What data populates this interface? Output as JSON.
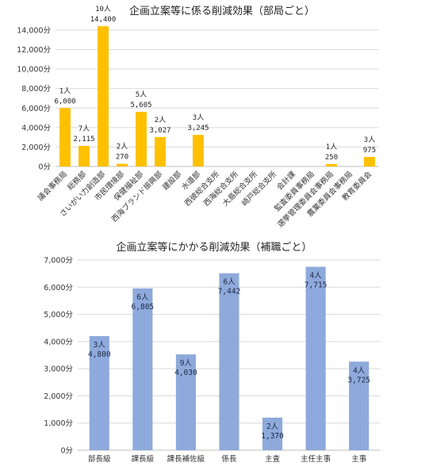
{
  "chart_data": [
    {
      "type": "bar",
      "title": "企画立案等に係る削減効果（部局ごと）",
      "color": "#FFC000",
      "ylim": [
        0,
        14000
      ],
      "yticks": [
        "0分",
        "2,000分",
        "4,000分",
        "6,000分",
        "8,000分",
        "10,000分",
        "12,000分",
        "14,000分"
      ],
      "categories": [
        "議会事務局",
        "総務部",
        "さいがい力創造部",
        "市民環境部",
        "保健福祉部",
        "西海ブランド振興部",
        "建設部",
        "水道部",
        "西彼総合支所",
        "西海総合支所",
        "大島総合支所",
        "崎戸総合支所",
        "会計課",
        "監査委員事務局",
        "選挙管理委員会事務局",
        "農業委員会事務局",
        "教育委員会"
      ],
      "values": [
        6000,
        2115,
        14400,
        270,
        5605,
        3027,
        0,
        3245,
        0,
        0,
        0,
        0,
        0,
        0,
        250,
        0,
        975
      ],
      "people": [
        "1人",
        "7人",
        "10人",
        "2人",
        "5人",
        "2人",
        "",
        "3人",
        "",
        "",
        "",
        "",
        "",
        "",
        "1人",
        "",
        "3人"
      ],
      "value_labels": [
        "6,000",
        "2,115",
        "14,400",
        "270",
        "5,605",
        "3,027",
        "",
        "3,245",
        "",
        "",
        "",
        "",
        "",
        "",
        "250",
        "",
        "975"
      ],
      "grid": true,
      "legend": "none"
    },
    {
      "type": "bar",
      "title": "企画立案等にかかる削減効果（補職ごと）",
      "color": "#8EA9DB",
      "ylim": [
        0,
        8000
      ],
      "yticks": [
        "0分",
        "1,000分",
        "2,000分",
        "3,000分",
        "4,000分",
        "5,000分",
        "6,000分",
        "7,000分"
      ],
      "categories": [
        "部長級",
        "課長級",
        "課長補佐級",
        "係長",
        "主査",
        "主任主事",
        "主事"
      ],
      "values": [
        4800,
        6805,
        4030,
        7442,
        1370,
        7715,
        3725
      ],
      "people": [
        "3人",
        "6人",
        "9人",
        "6人",
        "2人",
        "4人",
        "4人"
      ],
      "value_labels": [
        "4,800",
        "6,805",
        "4,030",
        "7,442",
        "1,370",
        "7,715",
        "3,725"
      ],
      "grid": true,
      "legend": "none"
    }
  ]
}
